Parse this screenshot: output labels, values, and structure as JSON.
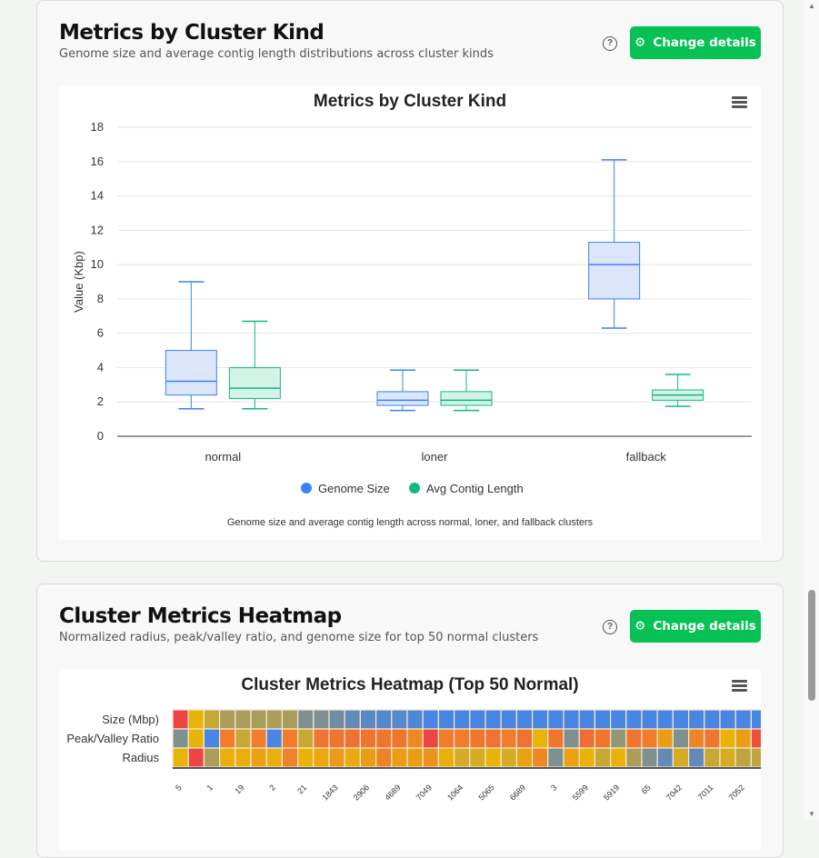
{
  "card1": {
    "title": "Metrics by Cluster Kind",
    "subtitle": "Genome size and average contig length distributions across cluster kinds",
    "button": "Change details",
    "help": "?"
  },
  "card2": {
    "title": "Cluster Metrics Heatmap",
    "subtitle": "Normalized radius, peak/valley ratio, and genome size for top 50 normal clusters",
    "button": "Change details",
    "help": "?"
  },
  "chart_data": [
    {
      "type": "boxplot",
      "title": "Metrics by Cluster Kind",
      "ylabel": "Value (Kbp)",
      "ylim": [
        0,
        18
      ],
      "yticks": [
        0,
        2,
        4,
        6,
        8,
        10,
        12,
        14,
        16,
        18
      ],
      "grid": true,
      "legend": "bottom",
      "categories": [
        "normal",
        "loner",
        "fallback"
      ],
      "caption": "Genome size and average contig length across normal, loner, and fallback clusters",
      "series": [
        {
          "name": "Genome Size",
          "color": "#3b82f6",
          "fill": "#dbe6fb",
          "boxes": [
            [
              1.6,
              2.4,
              3.2,
              5.0,
              9.0
            ],
            [
              1.5,
              1.8,
              2.1,
              2.6,
              3.85
            ],
            [
              6.3,
              8.0,
              10.0,
              11.3,
              16.1
            ]
          ]
        },
        {
          "name": "Avg Contig Length",
          "color": "#10b981",
          "fill": "#d4f3e7",
          "boxes": [
            [
              1.6,
              2.2,
              2.8,
              4.0,
              6.7
            ],
            [
              1.5,
              1.8,
              2.1,
              2.6,
              3.85
            ],
            [
              1.75,
              2.1,
              2.4,
              2.7,
              3.6
            ]
          ]
        }
      ]
    },
    {
      "type": "heatmap",
      "title": "Cluster Metrics Heatmap (Top 50 Normal)",
      "rows": [
        "Size (Mbp)",
        "Peak/Valley Ratio",
        "Radius"
      ],
      "xlabels": [
        "5",
        "1",
        "19",
        "2",
        "21",
        "1843",
        "2906",
        "4689",
        "7049",
        "1064",
        "5065",
        "6689",
        "3",
        "5599",
        "5919",
        "65",
        "7042",
        "7011",
        "7052"
      ],
      "values": [
        [
          1,
          0.5,
          0.42,
          0.35,
          0.35,
          0.35,
          0.35,
          0.35,
          0.25,
          0.25,
          0.2,
          0.15,
          0.12,
          0.1,
          0.1,
          0.08,
          0.05,
          0.05,
          0.05,
          0.05,
          0.05,
          0.05,
          0.05,
          0.05,
          0.05,
          0.05,
          0.05,
          0.05,
          0.05,
          0.05,
          0.05,
          0.05,
          0.05,
          0.05,
          0.05,
          0.05,
          0.05,
          0.05
        ],
        [
          0.25,
          0.5,
          0.05,
          0.75,
          0.42,
          0.75,
          0.05,
          0.75,
          0.42,
          0.78,
          0.78,
          0.8,
          0.78,
          0.78,
          0.78,
          0.7,
          1,
          0.75,
          0.75,
          0.78,
          0.8,
          0.75,
          0.8,
          0.5,
          0.78,
          0.25,
          0.82,
          0.78,
          0.3,
          0.78,
          0.75,
          0.6,
          0.25,
          0.72,
          0.78,
          0.5,
          0.6,
          0.95
        ],
        [
          0.5,
          1,
          0.35,
          0.52,
          0.52,
          0.58,
          0.52,
          0.72,
          0.5,
          0.55,
          0.62,
          0.55,
          0.6,
          0.72,
          0.6,
          0.6,
          0.65,
          0.52,
          0.45,
          0.45,
          0.5,
          0.45,
          0.58,
          0.7,
          0.25,
          0.58,
          0.5,
          0.42,
          0.5,
          0.35,
          0.25,
          0.15,
          0.45,
          0.15,
          0.42,
          0.45,
          0.4,
          0.4
        ]
      ]
    }
  ]
}
